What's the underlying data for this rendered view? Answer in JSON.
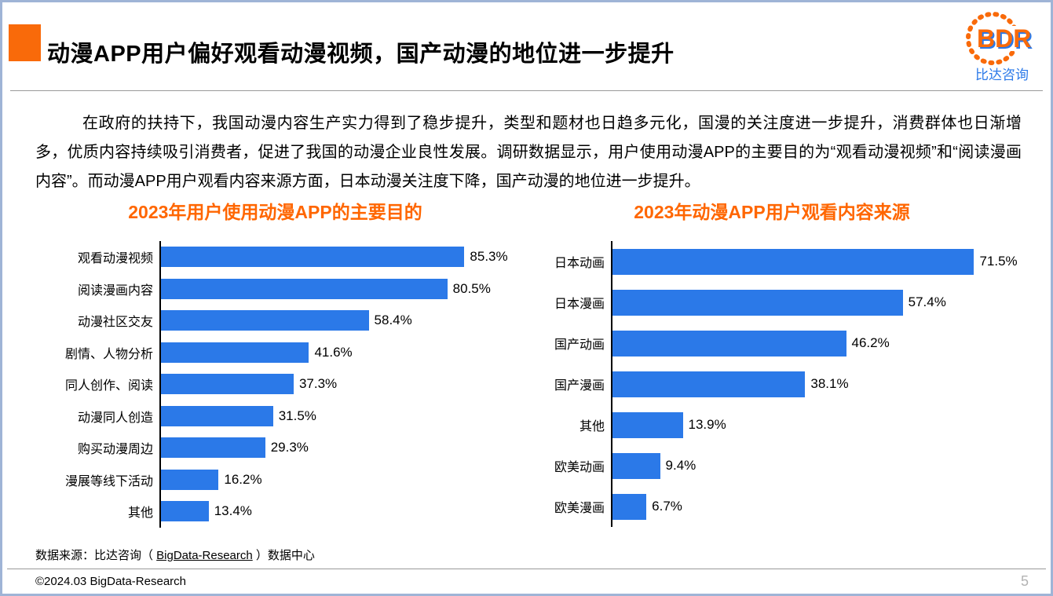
{
  "slide": {
    "title": "动漫APP用户偏好观看动漫视频，国产动漫的地位进一步提升",
    "paragraph": "在政府的扶持下，我国动漫内容生产实力得到了稳步提升，类型和题材也日趋多元化，国漫的关注度进一步提升，消费群体也日渐增多，优质内容持续吸引消费者，促进了我国的动漫企业良性发展。调研数据显示，用户使用动漫APP的主要目的为“观看动漫视频”和“阅读漫画内容”。而动漫APP用户观看内容来源方面，日本动漫关注度下降，国产动漫的地位进一步提升。",
    "source_prefix": "数据来源：比达咨询（ ",
    "source_underlined": "BigData-Research",
    "source_suffix": " ）数据中心",
    "copyright": "©2024.03 BigData-Research",
    "page_number": "5"
  },
  "logo": {
    "text": "BDR",
    "subtext": "比达咨询"
  },
  "colors": {
    "bar": "#2b79e8",
    "accent_orange": "#f96a0a",
    "title_orange": "#ff6600",
    "logo_blue": "#2b79e8"
  },
  "chart_data": [
    {
      "type": "bar",
      "orientation": "horizontal",
      "title": "2023年用户使用动漫APP的主要目的",
      "categories": [
        "观看动漫视频",
        "阅读漫画内容",
        "动漫社区交友",
        "剧情、人物分析",
        "同人创作、阅读",
        "动漫同人创造",
        "购买动漫周边",
        "漫展等线下活动",
        "其他"
      ],
      "values": [
        85.3,
        80.5,
        58.4,
        41.6,
        37.3,
        31.5,
        29.3,
        16.2,
        13.4
      ],
      "value_labels": [
        "85.3%",
        "80.5%",
        "58.4%",
        "41.6%",
        "37.3%",
        "31.5%",
        "29.3%",
        "16.2%",
        "13.4%"
      ],
      "xlabel": "",
      "ylabel": "",
      "xlim": [
        0,
        100
      ],
      "grid": false,
      "legend": false
    },
    {
      "type": "bar",
      "orientation": "horizontal",
      "title": "2023年动漫APP用户观看内容来源",
      "categories": [
        "日本动画",
        "日本漫画",
        "国产动画",
        "国产漫画",
        "其他",
        "欧美动画",
        "欧美漫画"
      ],
      "values": [
        71.5,
        57.4,
        46.2,
        38.1,
        13.9,
        9.4,
        6.7
      ],
      "value_labels": [
        "71.5%",
        "57.4%",
        "46.2%",
        "38.1%",
        "13.9%",
        "9.4%",
        "6.7%"
      ],
      "xlabel": "",
      "ylabel": "",
      "xlim": [
        0,
        75
      ],
      "grid": false,
      "legend": false
    }
  ]
}
